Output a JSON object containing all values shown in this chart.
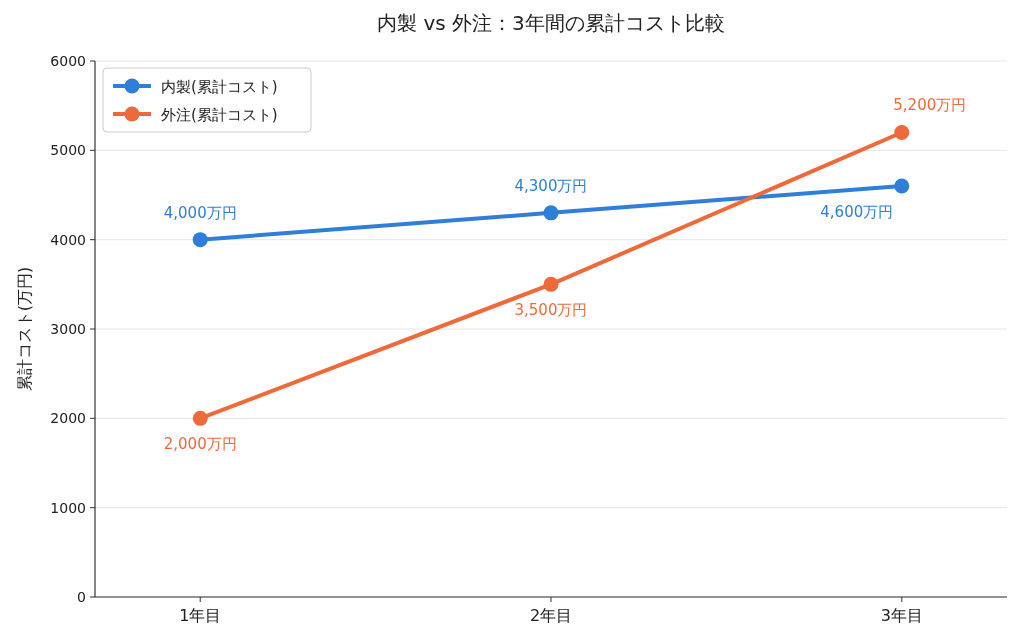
{
  "chart_data": {
    "type": "line",
    "title": "内製 vs 外注：3年間の累計コスト比較",
    "ylabel": "累計コスト(万円)",
    "categories": [
      "1年目",
      "2年目",
      "3年目"
    ],
    "series": [
      {
        "name": "内製(累計コスト)",
        "color": "#2f7ed8",
        "values": [
          4000,
          4300,
          4600
        ],
        "value_labels": [
          "4,000万円",
          "4,300万円",
          "4,600万円"
        ]
      },
      {
        "name": "外注(累計コスト)",
        "color": "#ef6a3a",
        "values": [
          2000,
          3500,
          5200
        ],
        "value_labels": [
          "2,000万円",
          "3,500万円",
          "5,200万円"
        ]
      }
    ],
    "ylim": [
      0,
      6000
    ],
    "yticks": [
      0,
      1000,
      2000,
      3000,
      4000,
      5000,
      6000
    ],
    "grid": "y",
    "legend": "top left",
    "marker": "circle",
    "line_style": "solid"
  }
}
